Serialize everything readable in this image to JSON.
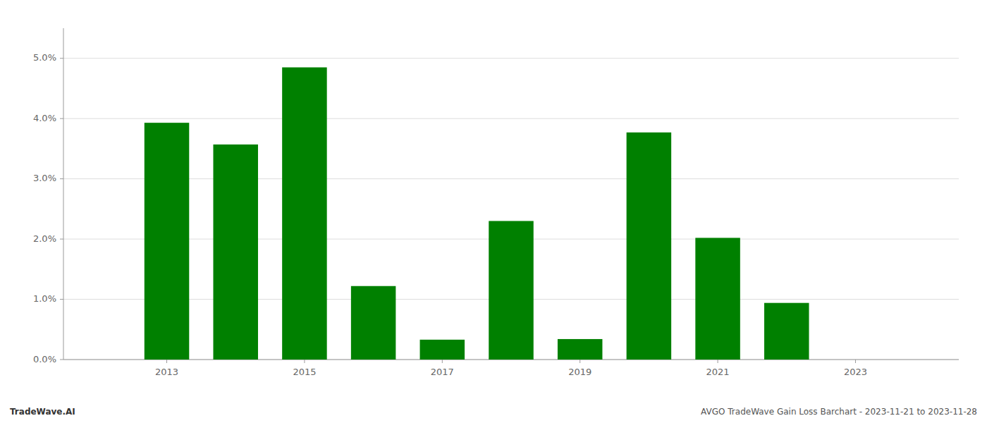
{
  "chart_data": {
    "type": "bar",
    "x": [
      2013,
      2014,
      2015,
      2016,
      2017,
      2018,
      2019,
      2020,
      2021,
      2022,
      2023
    ],
    "values": [
      0.0393,
      0.0357,
      0.0485,
      0.0122,
      0.0033,
      0.023,
      0.0034,
      0.0377,
      0.0202,
      0.0094,
      0.0
    ],
    "color": "#008000",
    "xlim": [
      2011.5,
      2024.5
    ],
    "xticks": [
      2013,
      2015,
      2017,
      2019,
      2021,
      2023
    ],
    "ylim": [
      0,
      0.055
    ],
    "yticks": [
      {
        "value": 0.0,
        "label": "0.0%"
      },
      {
        "value": 0.01,
        "label": "1.0%"
      },
      {
        "value": 0.02,
        "label": "2.0%"
      },
      {
        "value": 0.03,
        "label": "3.0%"
      },
      {
        "value": 0.04,
        "label": "4.0%"
      },
      {
        "value": 0.05,
        "label": "5.0%"
      }
    ],
    "grid": true,
    "annotations": [
      "TradeWave.AI",
      "AVGO TradeWave Gain Loss Barchart - 2023-11-21 to 2023-11-28"
    ]
  }
}
